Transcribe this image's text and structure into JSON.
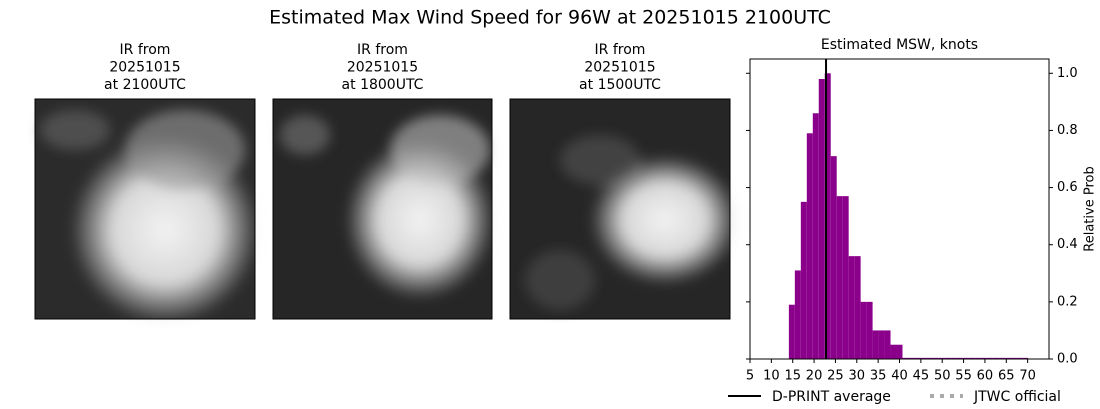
{
  "title": "Estimated Max Wind Speed for 96W at 20251015 2100UTC",
  "panels": [
    {
      "lines": [
        "IR from",
        "20251015",
        "at 2100UTC"
      ]
    },
    {
      "lines": [
        "IR from",
        "20251015",
        "at 1800UTC"
      ]
    },
    {
      "lines": [
        "IR from",
        "20251015",
        "at 1500UTC"
      ]
    }
  ],
  "chart_data": {
    "type": "histogram",
    "title": "Estimated MSW, knots",
    "y_label": "Relative Prob",
    "color": "#8b008b",
    "bins": [
      14.1,
      15.5,
      16.9,
      18.3,
      19.7,
      21.1,
      22.5,
      23.9,
      25.3,
      26.7,
      28.1,
      29.5,
      30.9,
      32.3,
      33.7,
      35.1,
      36.5,
      37.9,
      39.3,
      40.7,
      42.1,
      43.5,
      44.9,
      46.3,
      47.7,
      49.1,
      50.5,
      51.9,
      53.3,
      54.7,
      56.1,
      57.5,
      58.9,
      60.3,
      61.7,
      63.1,
      64.5,
      65.9,
      67.3,
      68.7,
      70.1
    ],
    "values": [
      0.19,
      0.31,
      0.55,
      0.79,
      0.86,
      0.98,
      1.0,
      0.71,
      0.57,
      0.57,
      0.36,
      0.36,
      0.2,
      0.2,
      0.1,
      0.1,
      0.1,
      0.05,
      0.05,
      0.004,
      0.004,
      0.004,
      0.004,
      0.004,
      0.004,
      0.004,
      0.004,
      0.004,
      0.004,
      0.004,
      0.004,
      0.004,
      0.004,
      0.004,
      0.004,
      0.004,
      0.004,
      0.004,
      0.004,
      0.004
    ],
    "xlim": [
      5,
      75
    ],
    "ylim": [
      0,
      1.05
    ],
    "xticks": [
      5,
      10,
      15,
      20,
      25,
      30,
      35,
      40,
      45,
      50,
      55,
      60,
      65,
      70
    ],
    "yticks": [
      {
        "value": 0,
        "label": "0.0"
      },
      0.2,
      0.4,
      0.6,
      0.8,
      {
        "value": 1,
        "label": "1.0"
      }
    ],
    "dprint_average": 22.8,
    "legend": [
      {
        "name": "D-PRINT average",
        "color": "#000000",
        "style": "solid"
      },
      {
        "name": "JTWC official",
        "color": "#aaaaaa",
        "style": "dotted"
      }
    ]
  }
}
